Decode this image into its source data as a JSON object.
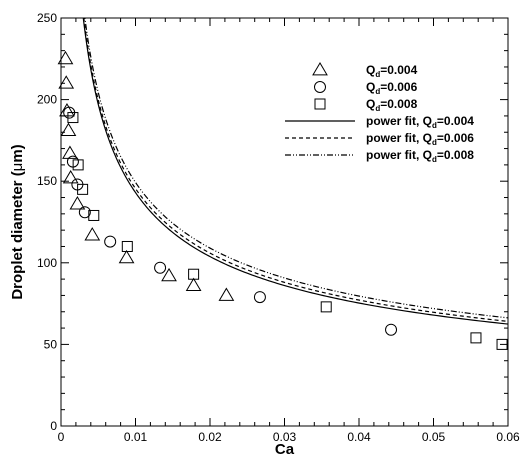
{
  "chart_data": {
    "type": "scatter",
    "xlabel": "Ca",
    "ylabel_prefix": "Droplet diameter (",
    "ylabel_mu": "μ",
    "ylabel_suffix": "m)",
    "xlim": [
      0,
      0.06
    ],
    "ylim": [
      0,
      250
    ],
    "x_ticks": [
      0,
      0.01,
      0.02,
      0.03,
      0.04,
      0.05,
      0.06
    ],
    "y_ticks": [
      0,
      50,
      100,
      150,
      200,
      250
    ],
    "x_tick_labels": [
      "0",
      "0.01",
      "0.02",
      "0.03",
      "0.04",
      "0.05",
      "0.06"
    ],
    "y_tick_labels": [
      "0",
      "50",
      "100",
      "150",
      "200",
      "250"
    ],
    "grid": false,
    "legend_position": "top-right",
    "series": [
      {
        "name_main": "Q",
        "name_sub": "d",
        "name_rest": "=0.004",
        "marker": "triangle",
        "points": [
          [
            0.0006,
            225
          ],
          [
            0.0007,
            210
          ],
          [
            0.0008,
            193
          ],
          [
            0.001,
            181
          ],
          [
            0.0012,
            167
          ],
          [
            0.0013,
            152
          ],
          [
            0.0022,
            136
          ],
          [
            0.0042,
            117
          ],
          [
            0.0088,
            103
          ],
          [
            0.0145,
            92
          ],
          [
            0.0178,
            86
          ],
          [
            0.0222,
            80
          ]
        ]
      },
      {
        "name_main": "Q",
        "name_sub": "d",
        "name_rest": "=0.006",
        "marker": "circle",
        "points": [
          [
            0.0011,
            192
          ],
          [
            0.0016,
            162
          ],
          [
            0.0022,
            148
          ],
          [
            0.0032,
            131
          ],
          [
            0.0066,
            113
          ],
          [
            0.0133,
            97
          ],
          [
            0.0267,
            79
          ],
          [
            0.0443,
            59
          ]
        ]
      },
      {
        "name_main": "Q",
        "name_sub": "d",
        "name_rest": "=0.008",
        "marker": "square",
        "points": [
          [
            0.0016,
            189
          ],
          [
            0.0023,
            160
          ],
          [
            0.0029,
            145
          ],
          [
            0.0044,
            129
          ],
          [
            0.0089,
            110
          ],
          [
            0.0178,
            93
          ],
          [
            0.0356,
            73
          ],
          [
            0.0557,
            54
          ],
          [
            0.0592,
            50
          ]
        ]
      }
    ],
    "fits": [
      {
        "name_main": "power fit, Q",
        "name_sub": "d",
        "name_rest": "=0.004",
        "dash": "solid",
        "a": 17.0,
        "b": -0.4625
      },
      {
        "name_main": "power fit, Q",
        "name_sub": "d",
        "name_rest": "=0.006",
        "dash": "dashed",
        "a": 17.7,
        "b": -0.4574
      },
      {
        "name_main": "power fit, Q",
        "name_sub": "d",
        "name_rest": "=0.008",
        "dash": "dashdotdot",
        "a": 18.5,
        "b": -0.4534
      }
    ]
  }
}
